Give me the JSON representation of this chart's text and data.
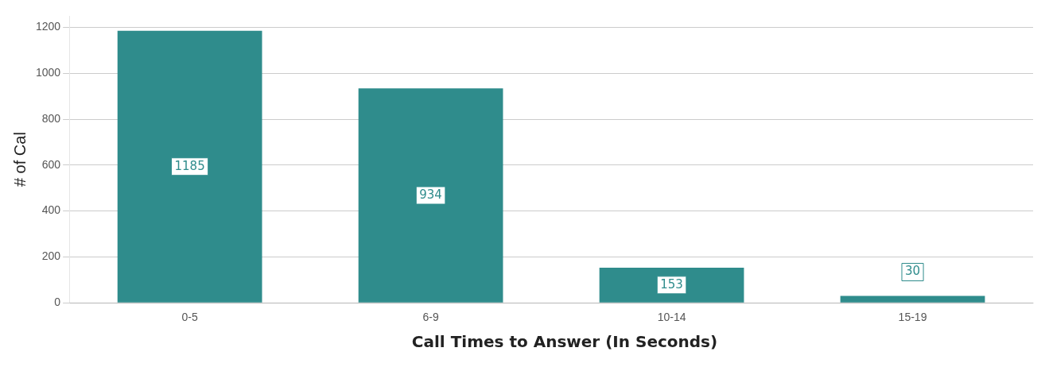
{
  "chart_data": {
    "type": "bar",
    "xlabel": "Call Times to Answer (In Seconds)",
    "ylabel": "# of Cal",
    "categories": [
      "0-5",
      "6-9",
      "10-14",
      "15-19"
    ],
    "values": [
      1185,
      934,
      153,
      30
    ],
    "color": "#2f8c8c",
    "ylim": [
      0,
      1250
    ],
    "yticks": [
      0,
      200,
      400,
      600,
      800,
      1000,
      1200
    ],
    "grid": "y",
    "data_labels": true,
    "legend": false
  }
}
